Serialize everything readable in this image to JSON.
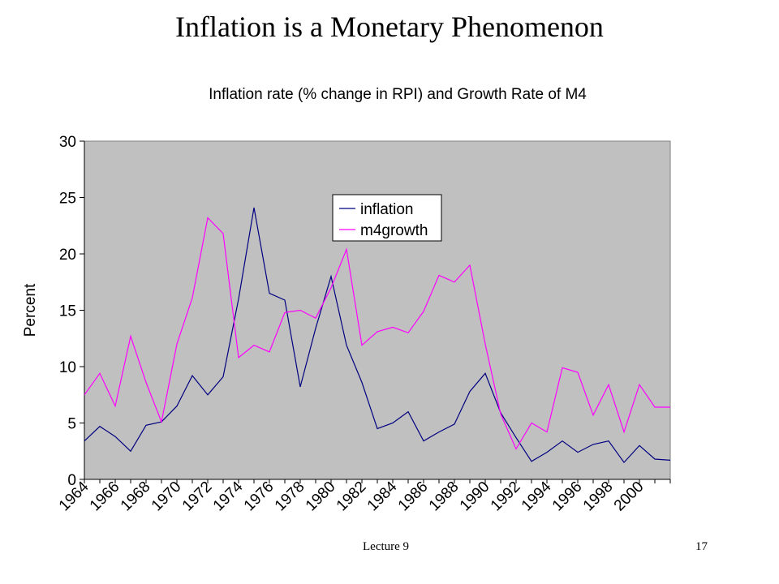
{
  "slide": {
    "title": "Inflation is a Monetary Phenomenon",
    "footer_left": "Lecture 9",
    "footer_right": "17"
  },
  "chart_data": {
    "type": "line",
    "title": "Inflation rate (% change in RPI) and Growth Rate of M4",
    "xlabel": "",
    "ylabel": "Percent",
    "ylim": [
      0,
      30
    ],
    "yticks": [
      0,
      5,
      10,
      15,
      20,
      25,
      30
    ],
    "x": [
      1964,
      1965,
      1966,
      1967,
      1968,
      1969,
      1970,
      1971,
      1972,
      1973,
      1974,
      1975,
      1976,
      1977,
      1978,
      1979,
      1980,
      1981,
      1982,
      1983,
      1984,
      1985,
      1986,
      1987,
      1988,
      1989,
      1990,
      1991,
      1992,
      1993,
      1994,
      1995,
      1996,
      1997,
      1998,
      1999,
      2000,
      2001,
      2002
    ],
    "xtick_labels": [
      "1964",
      "1966",
      "1968",
      "1970",
      "1972",
      "1974",
      "1976",
      "1978",
      "1980",
      "1982",
      "1984",
      "1986",
      "1988",
      "1990",
      "1992",
      "1994",
      "1996",
      "1998",
      "2000"
    ],
    "grid": false,
    "plot_background": "#c0c0c0",
    "legend_position": "top-center",
    "series": [
      {
        "name": "inflation",
        "color": "#000080",
        "values": [
          3.4,
          4.7,
          3.8,
          2.5,
          4.8,
          5.1,
          6.5,
          9.2,
          7.5,
          9.1,
          16.0,
          24.1,
          16.5,
          15.9,
          8.2,
          13.4,
          18.0,
          11.9,
          8.6,
          4.5,
          5.0,
          6.0,
          3.4,
          4.2,
          4.9,
          7.8,
          9.4,
          5.9,
          3.7,
          1.6,
          2.4,
          3.4,
          2.4,
          3.1,
          3.4,
          1.5,
          3.0,
          1.8,
          1.7
        ]
      },
      {
        "name": "m4growth",
        "color": "#ff00ff",
        "values": [
          7.5,
          9.4,
          6.5,
          12.7,
          8.6,
          5.1,
          12.0,
          16.1,
          23.2,
          21.8,
          10.8,
          11.9,
          11.3,
          14.8,
          15.0,
          14.3,
          17.0,
          20.4,
          11.9,
          13.1,
          13.5,
          13.0,
          14.9,
          18.1,
          17.5,
          19.0,
          12.0,
          5.8,
          2.7,
          5.0,
          4.2,
          9.9,
          9.5,
          5.7,
          8.4,
          4.2,
          8.4,
          6.4,
          6.4
        ]
      }
    ]
  }
}
